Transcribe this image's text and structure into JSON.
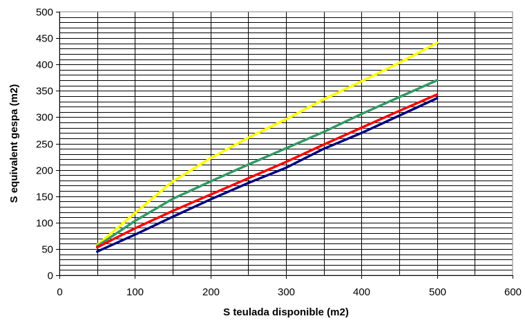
{
  "chart_data": {
    "type": "line",
    "title": "",
    "xlabel": "S teulada disponible (m2)",
    "ylabel": "S equivalent gespa (m2)",
    "xlim": [
      0,
      600
    ],
    "ylim": [
      0,
      500
    ],
    "x_ticks": [
      0,
      100,
      200,
      300,
      400,
      500,
      600
    ],
    "y_ticks": [
      0,
      50,
      100,
      150,
      200,
      250,
      300,
      350,
      400,
      450,
      500
    ],
    "grid": true,
    "legend": "none",
    "series": [
      {
        "color": "#ffff00",
        "x": [
          50,
          100,
          150,
          200,
          250,
          300,
          350,
          400,
          450,
          500
        ],
        "y": [
          57,
          118,
          178,
          222,
          261,
          296,
          334,
          368,
          403,
          441
        ]
      },
      {
        "color": "#339966",
        "x": [
          50,
          100,
          150,
          200,
          250,
          300,
          350,
          400,
          450,
          500
        ],
        "y": [
          55,
          103,
          145,
          178,
          210,
          241,
          272,
          306,
          338,
          370
        ]
      },
      {
        "color": "#ff0000",
        "x": [
          50,
          100,
          150,
          200,
          250,
          300,
          350,
          400,
          450,
          500
        ],
        "y": [
          53,
          89,
          122,
          153,
          184,
          215,
          248,
          280,
          312,
          343
        ]
      },
      {
        "color": "#000080",
        "x": [
          50,
          100,
          150,
          200,
          250,
          300,
          350,
          400,
          450,
          500
        ],
        "y": [
          45,
          77,
          111,
          144,
          175,
          204,
          240,
          270,
          303,
          336
        ]
      }
    ]
  }
}
